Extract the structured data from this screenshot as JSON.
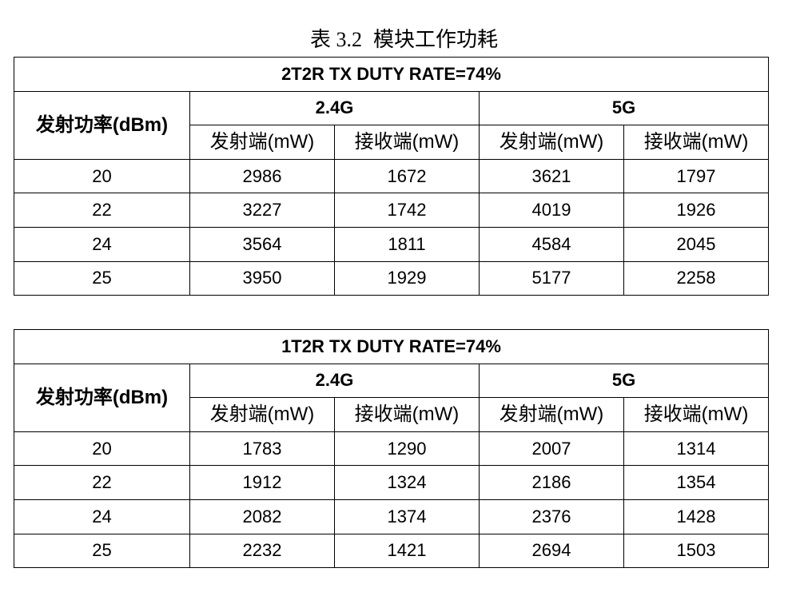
{
  "caption": {
    "number": "表 3.2",
    "title": "模块工作功耗"
  },
  "tables": [
    {
      "title": "2T2R TX DUTY RATE=74%",
      "row_header": "发射功率(dBm)",
      "bands": [
        "2.4G",
        "5G"
      ],
      "subheaders": [
        "发射端(mW)",
        "接收端(mW)",
        "发射端(mW)",
        "接收端(mW)"
      ],
      "rows": [
        [
          "20",
          "2986",
          "1672",
          "3621",
          "1797"
        ],
        [
          "22",
          "3227",
          "1742",
          "4019",
          "1926"
        ],
        [
          "24",
          "3564",
          "1811",
          "4584",
          "2045"
        ],
        [
          "25",
          "3950",
          "1929",
          "5177",
          "2258"
        ]
      ]
    },
    {
      "title": "1T2R TX DUTY RATE=74%",
      "row_header": "发射功率(dBm)",
      "bands": [
        "2.4G",
        "5G"
      ],
      "subheaders": [
        "发射端(mW)",
        "接收端(mW)",
        "发射端(mW)",
        "接收端(mW)"
      ],
      "rows": [
        [
          "20",
          "1783",
          "1290",
          "2007",
          "1314"
        ],
        [
          "22",
          "1912",
          "1324",
          "2186",
          "1354"
        ],
        [
          "24",
          "2082",
          "1374",
          "2376",
          "1428"
        ],
        [
          "25",
          "2232",
          "1421",
          "2694",
          "1503"
        ]
      ]
    }
  ]
}
